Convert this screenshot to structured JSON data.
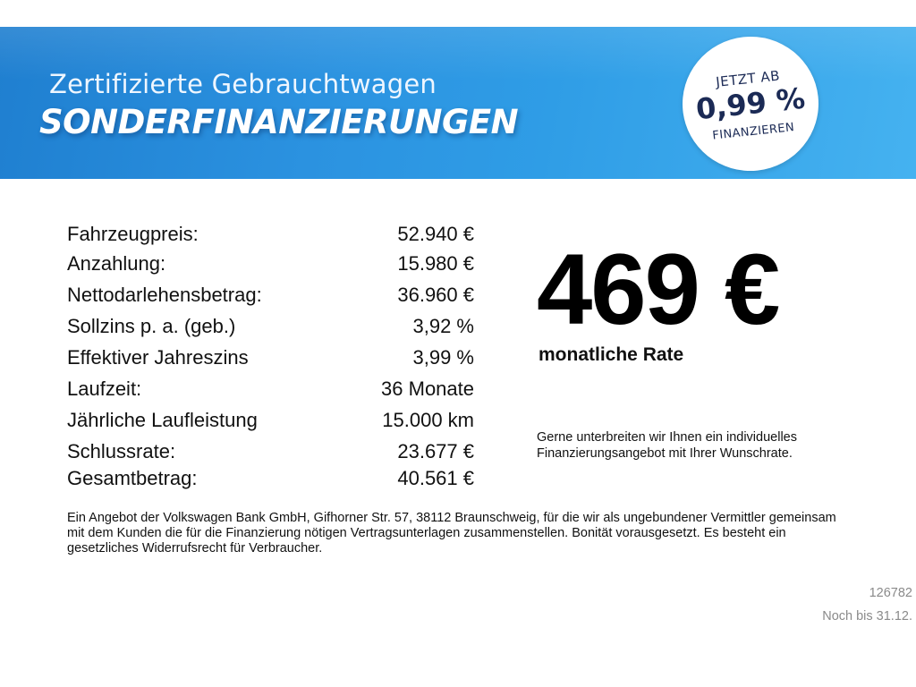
{
  "banner": {
    "subtitle": "Zertifizierte Gebrauchtwagen",
    "title": "SONDERFINANZIERUNGEN",
    "colors": {
      "gradient_start": "#1f7fd0",
      "gradient_end": "#45b2f0"
    }
  },
  "badge": {
    "line1": "JETZT AB",
    "line2": "0,99 %",
    "line3": "FINANZIEREN",
    "text_color": "#1b2a55"
  },
  "terms": [
    {
      "label": "Fahrzeugpreis:",
      "value": "52.940 €"
    },
    {
      "label": "Anzahlung:",
      "value": "15.980 €"
    },
    {
      "label": "Nettodarlehensbetrag:",
      "value": "36.960 €"
    },
    {
      "label": "Sollzins p. a. (geb.)",
      "value": "3,92 %"
    },
    {
      "label": "Effektiver Jahreszins",
      "value": "3,99 %"
    },
    {
      "label": "Laufzeit:",
      "value": "36 Monate"
    },
    {
      "label": "Jährliche Laufleistung",
      "value": "15.000 km"
    },
    {
      "label": "Schlussrate:",
      "value": "23.677 €"
    },
    {
      "label": "Gesamtbetrag:",
      "value": "40.561 €"
    }
  ],
  "rate": {
    "amount": "469 €",
    "label": "monatliche Rate"
  },
  "offer_note": "Gerne unterbreiten wir Ihnen ein individuelles Finanzierungsangebot mit Ihrer Wunschrate.",
  "disclaimer": "Ein Angebot der Volkswagen Bank GmbH, Gifhorner Str. 57, 38112 Braunschweig, für die wir als ungebundener Vermittler gemeinsam mit dem Kunden die für die Finanzierung nötigen Vertragsunterlagen zusammenstellen. Bonität vorausgesetzt. Es besteht ein gesetzliches Widerrufsrecht für Verbraucher.",
  "footer": {
    "ref_number": "126782",
    "valid_until": "Noch bis 31.12."
  }
}
